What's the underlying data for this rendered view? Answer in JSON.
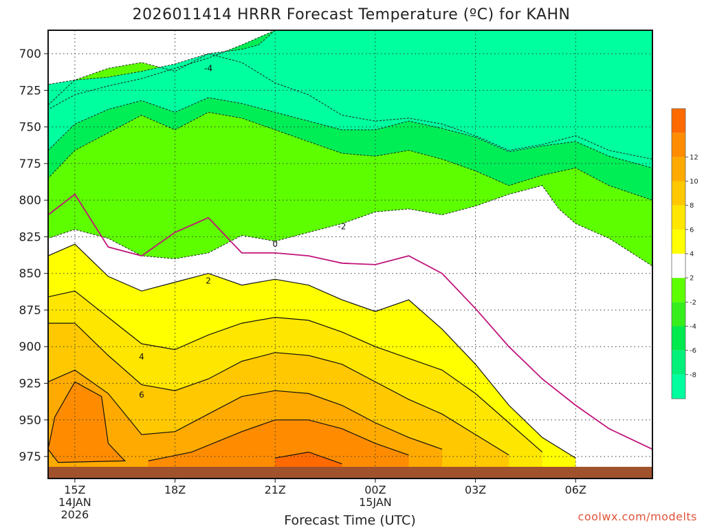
{
  "title": "2026011414 HRRR Forecast Temperature (ºC) for KAHN",
  "xlabel": "Forecast Time (UTC)",
  "credit": "coolwx.com/modelts",
  "chart_data": {
    "type": "heatmap",
    "title": "2026011414 HRRR Forecast Temperature (ºC) for KAHN",
    "xlabel": "Forecast Time (UTC)",
    "ylabel": "",
    "y_axis": "pressure (hPa), inverted",
    "ylim": [
      990,
      684
    ],
    "xlim_hours": [
      -0.8,
      17.3
    ],
    "grid": true,
    "y_ticks": [
      700,
      725,
      750,
      775,
      800,
      825,
      850,
      875,
      900,
      925,
      950,
      975
    ],
    "x_ticks": [
      {
        "hour": 0,
        "label": "15Z",
        "sub": [
          "14JAN",
          "2026"
        ]
      },
      {
        "hour": 3,
        "label": "18Z",
        "sub": []
      },
      {
        "hour": 6,
        "label": "21Z",
        "sub": []
      },
      {
        "hour": 9,
        "label": "00Z",
        "sub": [
          "15JAN"
        ]
      },
      {
        "hour": 12,
        "label": "03Z",
        "sub": []
      },
      {
        "hour": 15,
        "label": "06Z",
        "sub": []
      }
    ],
    "colorbar": {
      "levels": [
        -10,
        -8,
        -6,
        -4,
        -2,
        2,
        4,
        6,
        8,
        10,
        12,
        14
      ],
      "tick_labels": [
        "-8",
        "-6",
        "-4",
        "-2",
        "2",
        "4",
        "6",
        "8",
        "10",
        "12"
      ],
      "colors": [
        "#00ff9f",
        "#00f07a",
        "#00ea4e",
        "#36ee1c",
        "#5dff00",
        "#ffffff",
        "#ffff00",
        "#ffe600",
        "#ffc800",
        "#ffaa00",
        "#ff8c00",
        "#ff6a00"
      ]
    },
    "contour_labels": [
      {
        "value": "-4",
        "hour": 4.0,
        "p": 710
      },
      {
        "value": "-2",
        "hour": 8.0,
        "p": 818
      },
      {
        "value": "0",
        "hour": 6.0,
        "p": 830
      },
      {
        "value": "2",
        "hour": 4.0,
        "p": 855
      },
      {
        "value": "4",
        "hour": 2.0,
        "p": 907
      },
      {
        "value": "6",
        "hour": 2.0,
        "p": 933
      }
    ],
    "regions": [
      {
        "range": "<= -6",
        "color": "#00ff9f",
        "boundary": [
          [
            6.0,
            684
          ],
          [
            5.5,
            694
          ],
          [
            5.0,
            697
          ],
          [
            4.0,
            700
          ],
          [
            3.0,
            707
          ],
          [
            2.0,
            712
          ],
          [
            1.0,
            716
          ],
          [
            0,
            718
          ],
          [
            -0.8,
            721
          ],
          [
            -0.8,
            766
          ],
          [
            0,
            748
          ],
          [
            1.0,
            738
          ],
          [
            2.0,
            732
          ],
          [
            3.0,
            740
          ],
          [
            4.0,
            730
          ],
          [
            5.0,
            734
          ],
          [
            6.0,
            740
          ],
          [
            8.0,
            752
          ],
          [
            9.0,
            752
          ],
          [
            10.0,
            746
          ],
          [
            11.0,
            751
          ],
          [
            12.0,
            757
          ],
          [
            13.0,
            767
          ],
          [
            14.0,
            763
          ],
          [
            15.0,
            760
          ],
          [
            16.0,
            770
          ],
          [
            17.3,
            778
          ],
          [
            17.3,
            684
          ]
        ]
      },
      {
        "range": "-6 to -4",
        "color": "#00ee55",
        "boundary": [
          [
            6.0,
            684
          ],
          [
            5.0,
            694
          ],
          [
            4.0,
            703
          ],
          [
            3.0,
            710
          ],
          [
            2.0,
            717
          ],
          [
            1.0,
            722
          ],
          [
            0,
            728
          ],
          [
            -0.8,
            738
          ],
          [
            -0.8,
            785
          ],
          [
            0,
            766
          ],
          [
            1.0,
            754
          ],
          [
            2.0,
            742
          ],
          [
            3.0,
            752
          ],
          [
            4.0,
            740
          ],
          [
            5.0,
            744
          ],
          [
            6.0,
            752
          ],
          [
            8.0,
            768
          ],
          [
            9.0,
            770
          ],
          [
            10.0,
            766
          ],
          [
            11.0,
            772
          ],
          [
            12.0,
            780
          ],
          [
            13.0,
            790
          ],
          [
            14.0,
            783
          ],
          [
            15.0,
            778
          ],
          [
            16.0,
            790
          ],
          [
            17.3,
            800
          ],
          [
            17.3,
            684
          ]
        ]
      },
      {
        "range": "-4 to -2",
        "color": "#5dff00",
        "boundary": [
          [
            -0.8,
            735
          ],
          [
            0,
            718
          ],
          [
            1.0,
            710
          ],
          [
            2.0,
            706
          ],
          [
            3.0,
            712
          ],
          [
            4.0,
            700
          ],
          [
            5.0,
            706
          ],
          [
            6.0,
            720
          ],
          [
            7.0,
            728
          ],
          [
            8.0,
            742
          ],
          [
            9.0,
            746
          ],
          [
            10.0,
            744
          ],
          [
            11.0,
            748
          ],
          [
            12.0,
            756
          ],
          [
            13.0,
            766
          ],
          [
            14.0,
            762
          ],
          [
            15.0,
            756
          ],
          [
            16.0,
            766
          ],
          [
            17.3,
            772
          ],
          [
            17.3,
            845
          ],
          [
            16.0,
            826
          ],
          [
            15.0,
            816
          ],
          [
            14.5,
            806
          ],
          [
            14.0,
            790
          ],
          [
            13.0,
            796
          ],
          [
            12.0,
            804
          ],
          [
            11.0,
            810
          ],
          [
            10.0,
            806
          ],
          [
            9.0,
            808
          ],
          [
            8.0,
            816
          ],
          [
            7.0,
            822
          ],
          [
            6.0,
            828
          ],
          [
            5.0,
            824
          ],
          [
            4.0,
            836
          ],
          [
            3.0,
            840
          ],
          [
            2.0,
            838
          ],
          [
            1.0,
            826
          ],
          [
            0,
            820
          ],
          [
            -0.8,
            826
          ]
        ]
      }
    ],
    "isotherms": [
      {
        "value": 0,
        "color": "#c0137a",
        "points": [
          [
            -0.8,
            810
          ],
          [
            0,
            796
          ],
          [
            1.0,
            832
          ],
          [
            2.0,
            838
          ],
          [
            3.0,
            822
          ],
          [
            4.0,
            812
          ],
          [
            5.0,
            836
          ],
          [
            6.0,
            836
          ],
          [
            7.0,
            838
          ],
          [
            8.0,
            843
          ],
          [
            9.0,
            844
          ],
          [
            10.0,
            838
          ],
          [
            11.0,
            850
          ],
          [
            12.0,
            874
          ],
          [
            13.0,
            900
          ],
          [
            14.0,
            922
          ],
          [
            15.0,
            940
          ],
          [
            16.0,
            956
          ],
          [
            17.3,
            970
          ]
        ]
      },
      {
        "value": 2,
        "color": "#111111",
        "points": [
          [
            -0.8,
            838
          ],
          [
            0,
            830
          ],
          [
            1.0,
            852
          ],
          [
            2.0,
            862
          ],
          [
            3.0,
            856
          ],
          [
            4.0,
            850
          ],
          [
            5.0,
            858
          ],
          [
            6.0,
            854
          ],
          [
            7.0,
            858
          ],
          [
            8.0,
            868
          ],
          [
            9.0,
            876
          ],
          [
            10.0,
            868
          ],
          [
            11.0,
            888
          ],
          [
            12.0,
            912
          ],
          [
            13.0,
            940
          ],
          [
            14.0,
            962
          ],
          [
            15.0,
            976
          ]
        ]
      },
      {
        "value": 4,
        "color": "#111111",
        "points": [
          [
            -0.8,
            866
          ],
          [
            0,
            862
          ],
          [
            1.0,
            880
          ],
          [
            2.0,
            898
          ],
          [
            3.0,
            902
          ],
          [
            4.0,
            892
          ],
          [
            5.0,
            884
          ],
          [
            6.0,
            880
          ],
          [
            7.0,
            882
          ],
          [
            8.0,
            890
          ],
          [
            9.0,
            900
          ],
          [
            10.0,
            908
          ],
          [
            11.0,
            916
          ],
          [
            12.0,
            932
          ],
          [
            13.0,
            952
          ],
          [
            14.0,
            972
          ]
        ]
      },
      {
        "value": 6,
        "color": "#111111",
        "points": [
          [
            -0.8,
            884
          ],
          [
            0,
            884
          ],
          [
            1.0,
            906
          ],
          [
            2.0,
            926
          ],
          [
            3.0,
            930
          ],
          [
            4.0,
            922
          ],
          [
            5.0,
            910
          ],
          [
            6.0,
            904
          ],
          [
            7.0,
            906
          ],
          [
            8.0,
            912
          ],
          [
            9.0,
            924
          ],
          [
            10.0,
            936
          ],
          [
            11.0,
            946
          ],
          [
            12.0,
            960
          ],
          [
            13.0,
            974
          ]
        ]
      },
      {
        "value": 8,
        "color": "#111111",
        "points": [
          [
            -0.8,
            924
          ],
          [
            0,
            916
          ],
          [
            1.0,
            932
          ],
          [
            2.0,
            960
          ],
          [
            3.0,
            958
          ],
          [
            4.0,
            946
          ],
          [
            5.0,
            934
          ],
          [
            6.0,
            930
          ],
          [
            7.0,
            932
          ],
          [
            8.0,
            940
          ],
          [
            9.0,
            952
          ],
          [
            10.0,
            962
          ],
          [
            11.0,
            970
          ]
        ]
      },
      {
        "value": 10,
        "color": "#111111",
        "points": [
          [
            2.2,
            978
          ],
          [
            3.5,
            972
          ],
          [
            5.0,
            958
          ],
          [
            6.0,
            950
          ],
          [
            7.0,
            950
          ],
          [
            8.0,
            956
          ],
          [
            9.0,
            966
          ],
          [
            10.0,
            974
          ]
        ]
      },
      {
        "value": 12,
        "color": "#111111",
        "points": [
          [
            6.0,
            976
          ],
          [
            7.0,
            972
          ],
          [
            8.0,
            980
          ]
        ]
      }
    ],
    "warm_pocket": {
      "range": "10 to 12",
      "color": "#ff8c00",
      "points": [
        [
          -0.8,
          970
        ],
        [
          -0.6,
          948
        ],
        [
          0,
          924
        ],
        [
          0.8,
          934
        ],
        [
          1.0,
          966
        ],
        [
          1.5,
          978
        ],
        [
          -0.5,
          979
        ]
      ]
    },
    "ground_color": "#a0522d"
  }
}
